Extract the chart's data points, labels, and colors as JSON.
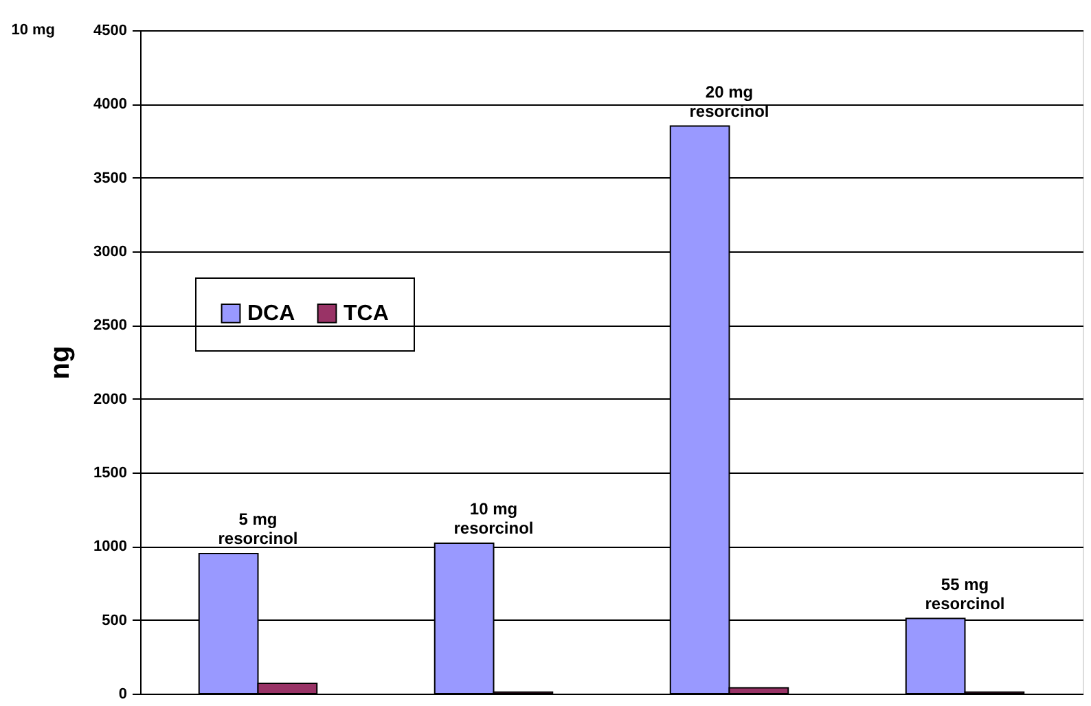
{
  "chart_data": {
    "type": "bar",
    "ylabel": "ng",
    "categories": [
      null,
      null,
      null,
      null
    ],
    "series": [
      {
        "name": "DCA",
        "color": "#9999ff",
        "values": [
          950,
          1020,
          3850,
          510
        ]
      },
      {
        "name": "TCA",
        "color": "#993366",
        "values": [
          70,
          10,
          40,
          10
        ]
      }
    ],
    "ylim": [
      0,
      4500
    ],
    "yticks": [
      0,
      500,
      1000,
      1500,
      2000,
      2500,
      3000,
      3500,
      4000,
      4500
    ],
    "grid": "y",
    "legend": "top left",
    "annotations": [
      "10 mg",
      "5 mg\nresorcinol",
      "10 mg\nresorcinol",
      "20 mg\nresorcinol",
      "55 mg\nresorcinol"
    ]
  }
}
